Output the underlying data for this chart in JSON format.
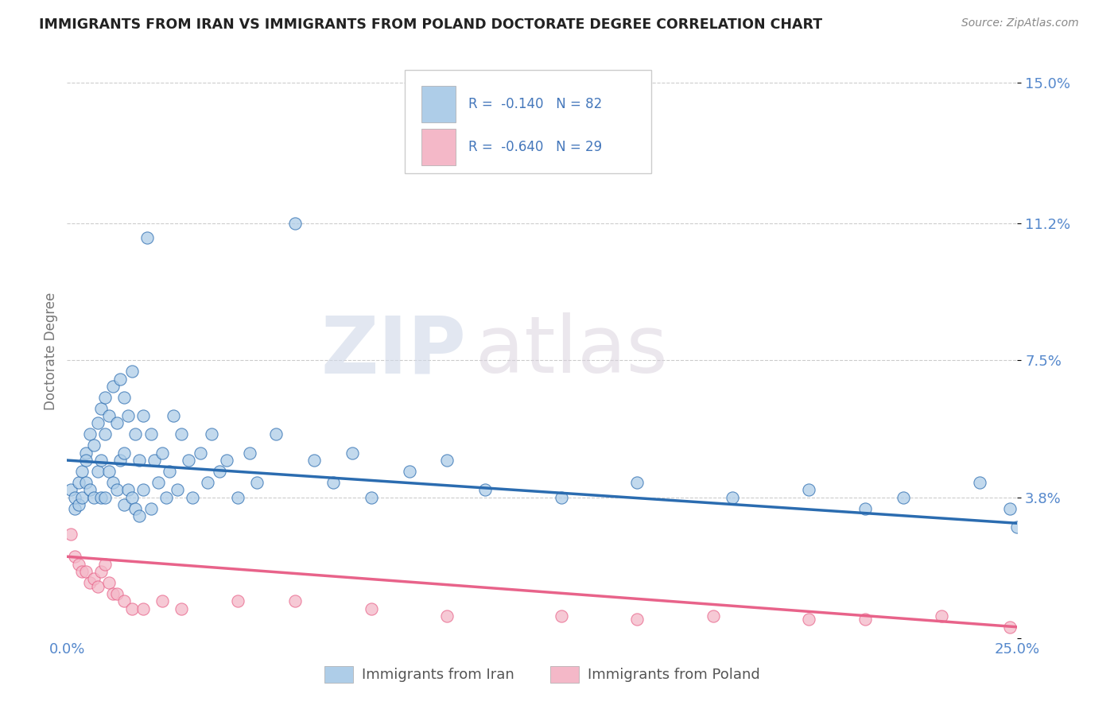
{
  "title": "IMMIGRANTS FROM IRAN VS IMMIGRANTS FROM POLAND DOCTORATE DEGREE CORRELATION CHART",
  "source": "Source: ZipAtlas.com",
  "ylabel": "Doctorate Degree",
  "xlim": [
    0.0,
    0.25
  ],
  "ylim": [
    0.0,
    0.155
  ],
  "yticks": [
    0.0,
    0.038,
    0.075,
    0.112,
    0.15
  ],
  "ytick_labels": [
    "",
    "3.8%",
    "7.5%",
    "11.2%",
    "15.0%"
  ],
  "xticks": [
    0.0,
    0.25
  ],
  "xtick_labels": [
    "0.0%",
    "25.0%"
  ],
  "legend_iran_label": "Immigrants from Iran",
  "legend_poland_label": "Immigrants from Poland",
  "iran_R": "-0.140",
  "iran_N": "82",
  "poland_R": "-0.640",
  "poland_N": "29",
  "iran_color": "#aecde8",
  "poland_color": "#f4b8c8",
  "iran_line_color": "#2b6cb0",
  "poland_line_color": "#e8638a",
  "background_color": "#ffffff",
  "watermark_zip": "ZIP",
  "watermark_atlas": "atlas",
  "iran_x": [
    0.001,
    0.002,
    0.002,
    0.003,
    0.003,
    0.004,
    0.004,
    0.005,
    0.005,
    0.005,
    0.006,
    0.006,
    0.007,
    0.007,
    0.008,
    0.008,
    0.009,
    0.009,
    0.009,
    0.01,
    0.01,
    0.01,
    0.011,
    0.011,
    0.012,
    0.012,
    0.013,
    0.013,
    0.014,
    0.014,
    0.015,
    0.015,
    0.015,
    0.016,
    0.016,
    0.017,
    0.017,
    0.018,
    0.018,
    0.019,
    0.019,
    0.02,
    0.02,
    0.021,
    0.022,
    0.022,
    0.023,
    0.024,
    0.025,
    0.026,
    0.027,
    0.028,
    0.029,
    0.03,
    0.032,
    0.033,
    0.035,
    0.037,
    0.038,
    0.04,
    0.042,
    0.045,
    0.048,
    0.05,
    0.055,
    0.06,
    0.065,
    0.07,
    0.075,
    0.08,
    0.09,
    0.1,
    0.11,
    0.13,
    0.15,
    0.175,
    0.195,
    0.21,
    0.22,
    0.24,
    0.248,
    0.25
  ],
  "iran_y": [
    0.04,
    0.035,
    0.038,
    0.042,
    0.036,
    0.045,
    0.038,
    0.05,
    0.042,
    0.048,
    0.055,
    0.04,
    0.052,
    0.038,
    0.058,
    0.045,
    0.062,
    0.048,
    0.038,
    0.065,
    0.055,
    0.038,
    0.06,
    0.045,
    0.068,
    0.042,
    0.058,
    0.04,
    0.07,
    0.048,
    0.065,
    0.05,
    0.036,
    0.06,
    0.04,
    0.072,
    0.038,
    0.055,
    0.035,
    0.048,
    0.033,
    0.06,
    0.04,
    0.108,
    0.055,
    0.035,
    0.048,
    0.042,
    0.05,
    0.038,
    0.045,
    0.06,
    0.04,
    0.055,
    0.048,
    0.038,
    0.05,
    0.042,
    0.055,
    0.045,
    0.048,
    0.038,
    0.05,
    0.042,
    0.055,
    0.112,
    0.048,
    0.042,
    0.05,
    0.038,
    0.045,
    0.048,
    0.04,
    0.038,
    0.042,
    0.038,
    0.04,
    0.035,
    0.038,
    0.042,
    0.035,
    0.03
  ],
  "poland_x": [
    0.001,
    0.002,
    0.003,
    0.004,
    0.005,
    0.006,
    0.007,
    0.008,
    0.009,
    0.01,
    0.011,
    0.012,
    0.013,
    0.015,
    0.017,
    0.02,
    0.025,
    0.03,
    0.045,
    0.06,
    0.08,
    0.1,
    0.13,
    0.15,
    0.17,
    0.195,
    0.21,
    0.23,
    0.248
  ],
  "poland_y": [
    0.028,
    0.022,
    0.02,
    0.018,
    0.018,
    0.015,
    0.016,
    0.014,
    0.018,
    0.02,
    0.015,
    0.012,
    0.012,
    0.01,
    0.008,
    0.008,
    0.01,
    0.008,
    0.01,
    0.01,
    0.008,
    0.006,
    0.006,
    0.005,
    0.006,
    0.005,
    0.005,
    0.006,
    0.003
  ],
  "iran_line_x0": 0.0,
  "iran_line_y0": 0.048,
  "iran_line_x1": 0.25,
  "iran_line_y1": 0.031,
  "poland_line_x0": 0.0,
  "poland_line_y0": 0.022,
  "poland_line_x1": 0.25,
  "poland_line_y1": 0.003
}
